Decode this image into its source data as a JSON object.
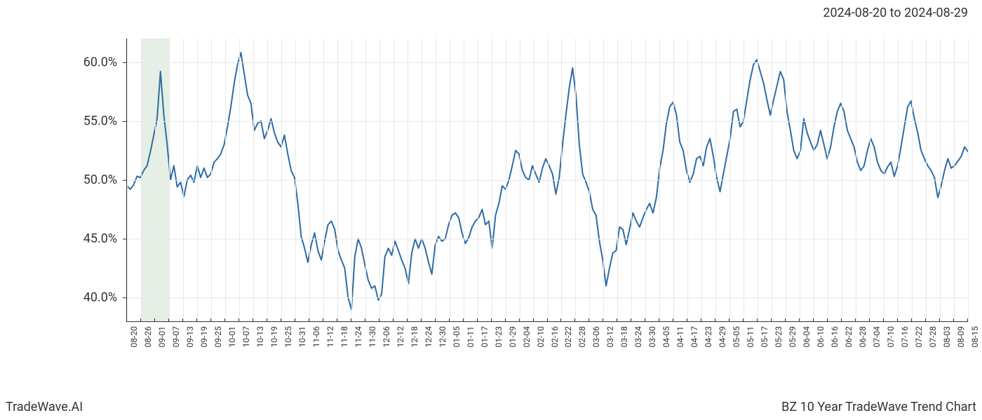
{
  "header": {
    "date_range": "2024-08-20 to 2024-08-29"
  },
  "footer": {
    "left": "TradeWave.AI",
    "right": "BZ 10 Year TradeWave Trend Chart"
  },
  "chart": {
    "type": "line",
    "background_color": "#ffffff",
    "grid_color": "#e8e8e8",
    "axis_color": "#333333",
    "line_color": "#2e6ca4",
    "line_width": 2,
    "highlight_band": {
      "color": "rgba(180, 210, 180, 0.35)",
      "start_index": 1,
      "end_index": 3
    },
    "y_axis": {
      "min": 38,
      "max": 62,
      "ticks": [
        40,
        45,
        50,
        55,
        60
      ],
      "tick_labels": [
        "40.0%",
        "45.0%",
        "50.0%",
        "55.0%",
        "60.0%"
      ],
      "label_fontsize": 18
    },
    "x_axis": {
      "tick_labels": [
        "08-20",
        "08-26",
        "09-01",
        "09-07",
        "09-13",
        "09-19",
        "09-25",
        "10-01",
        "10-07",
        "10-13",
        "10-19",
        "10-25",
        "10-31",
        "11-06",
        "11-12",
        "11-18",
        "11-24",
        "11-30",
        "12-06",
        "12-12",
        "12-18",
        "12-24",
        "12-30",
        "01-05",
        "01-11",
        "01-17",
        "01-23",
        "01-29",
        "02-04",
        "02-10",
        "02-16",
        "02-22",
        "02-28",
        "03-06",
        "03-12",
        "03-18",
        "03-24",
        "03-30",
        "04-05",
        "04-11",
        "04-17",
        "04-23",
        "04-29",
        "05-05",
        "05-11",
        "05-17",
        "05-23",
        "05-29",
        "06-04",
        "06-10",
        "06-16",
        "06-22",
        "06-28",
        "07-04",
        "07-10",
        "07-16",
        "07-22",
        "07-28",
        "08-03",
        "08-09",
        "08-15"
      ],
      "label_fontsize": 12
    },
    "series": {
      "values": [
        49.5,
        49.2,
        49.6,
        50.3,
        50.2,
        50.8,
        51.2,
        52.4,
        53.8,
        55.2,
        59.2,
        55.5,
        53.0,
        50.0,
        51.2,
        49.4,
        49.8,
        48.6,
        50.0,
        50.4,
        49.8,
        51.2,
        50.2,
        51.0,
        50.2,
        50.5,
        51.5,
        51.8,
        52.2,
        53.0,
        54.5,
        56.2,
        58.2,
        59.8,
        60.8,
        59.0,
        57.2,
        56.5,
        54.2,
        54.8,
        55.0,
        53.5,
        54.2,
        55.2,
        54.0,
        53.2,
        52.8,
        53.8,
        52.2,
        50.8,
        50.2,
        48.0,
        45.2,
        44.2,
        43.0,
        44.5,
        45.5,
        44.0,
        43.2,
        44.8,
        46.2,
        46.5,
        45.8,
        44.0,
        43.2,
        42.5,
        40.0,
        39.0,
        43.5,
        45.0,
        44.2,
        42.8,
        41.5,
        40.8,
        41.0,
        39.8,
        40.3,
        43.5,
        44.2,
        43.6,
        44.8,
        44.0,
        43.2,
        42.5,
        41.2,
        43.8,
        45.0,
        44.2,
        45.0,
        44.2,
        43.0,
        42.0,
        44.5,
        45.2,
        44.8,
        45.0,
        46.2,
        47.0,
        47.2,
        46.8,
        45.5,
        44.6,
        45.1,
        46.0,
        46.5,
        46.8,
        47.5,
        46.2,
        46.5,
        44.2,
        47.0,
        48.0,
        49.5,
        49.2,
        50.0,
        51.2,
        52.5,
        52.2,
        50.8,
        50.2,
        50.0,
        51.2,
        50.5,
        49.8,
        51.0,
        51.8,
        51.2,
        50.5,
        48.8,
        50.2,
        53.0,
        55.5,
        57.8,
        59.5,
        57.2,
        53.0,
        50.5,
        49.8,
        49.0,
        47.5,
        47.0,
        44.8,
        43.2,
        41.0,
        42.5,
        43.8,
        44.0,
        46.0,
        45.8,
        44.5,
        45.8,
        47.2,
        46.5,
        46.0,
        46.8,
        47.5,
        48.0,
        47.2,
        48.5,
        51.0,
        52.5,
        54.8,
        56.2,
        56.6,
        55.5,
        53.2,
        52.5,
        50.8,
        49.8,
        50.5,
        51.8,
        52.0,
        51.2,
        52.8,
        53.5,
        52.0,
        50.2,
        49.0,
        50.5,
        52.0,
        53.5,
        55.8,
        56.0,
        54.5,
        55.0,
        56.8,
        58.5,
        59.8,
        60.2,
        59.2,
        58.2,
        56.8,
        55.5,
        56.8,
        58.0,
        59.2,
        58.5,
        55.8,
        54.2,
        52.5,
        51.8,
        52.5,
        55.2,
        54.0,
        53.2,
        52.5,
        53.0,
        54.2,
        53.0,
        51.8,
        52.8,
        54.5,
        55.8,
        56.5,
        55.8,
        54.2,
        53.5,
        52.8,
        51.5,
        50.8,
        51.2,
        52.5,
        53.5,
        52.8,
        51.5,
        50.8,
        50.5,
        51.1,
        51.5,
        50.3,
        51.2,
        52.8,
        54.5,
        56.2,
        56.7,
        55.2,
        54.0,
        52.5,
        51.8,
        51.2,
        50.8,
        50.2,
        48.5,
        49.5,
        50.8,
        51.8,
        51.0,
        51.2,
        51.6,
        52.0,
        52.8,
        52.4
      ]
    }
  }
}
